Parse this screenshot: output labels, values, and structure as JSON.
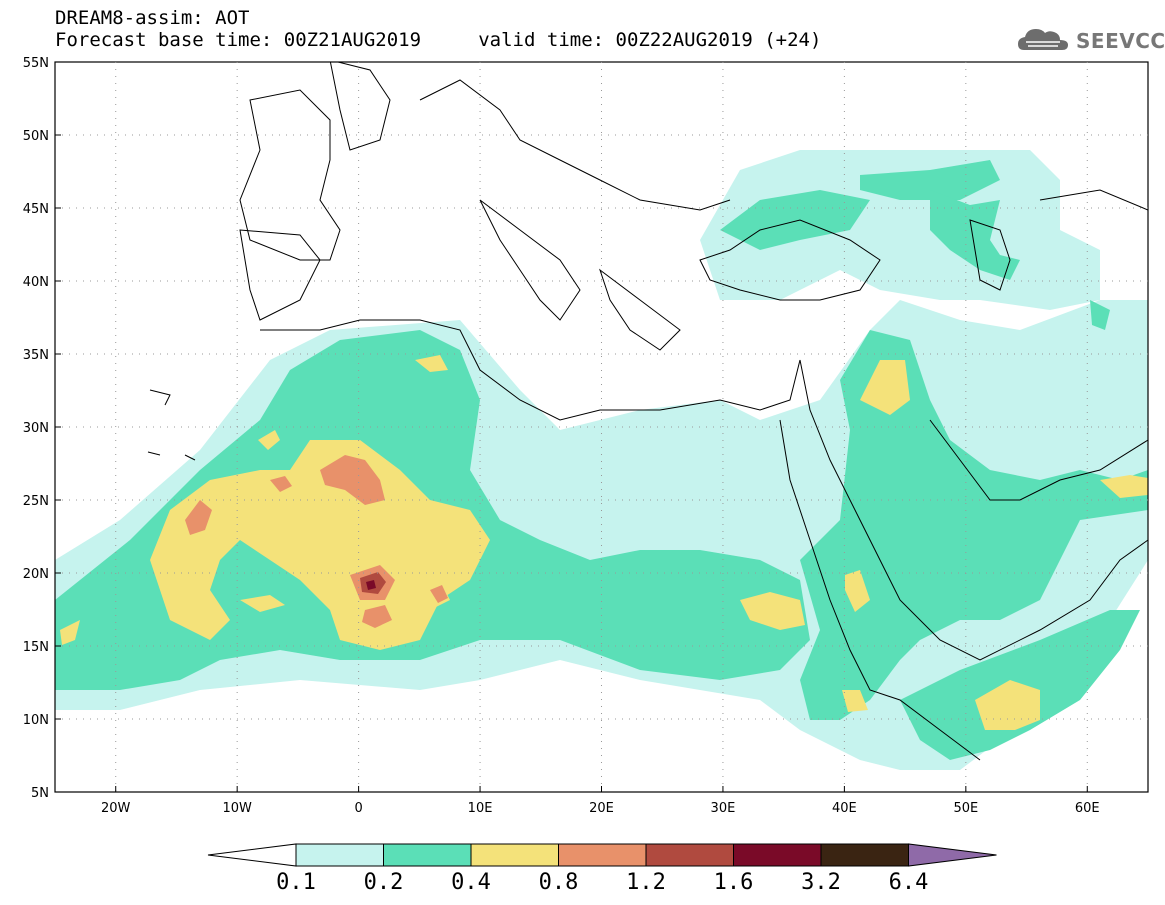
{
  "title": {
    "line1": "DREAM8-assim: AOT",
    "line2": "Forecast base time: 00Z21AUG2019     valid time: 00Z22AUG2019 (+24)"
  },
  "logo": {
    "text": "SEEVCCC",
    "icon": "cloud-icon"
  },
  "map": {
    "lon_range": [
      -25,
      65
    ],
    "lat_range": [
      5,
      55
    ],
    "lat_labels": [
      "55N",
      "50N",
      "45N",
      "40N",
      "35N",
      "30N",
      "25N",
      "20N",
      "15N",
      "10N",
      "5N"
    ],
    "lon_labels": [
      "20W",
      "10W",
      "0",
      "10E",
      "20E",
      "30E",
      "40E",
      "50E",
      "60E"
    ],
    "gridlines": "dotted"
  },
  "colorbar": {
    "labels": [
      "0.1",
      "0.2",
      "0.4",
      "0.8",
      "1.2",
      "1.6",
      "3.2",
      "6.4"
    ],
    "colors": [
      "#c6f3ee",
      "#5bdfb7",
      "#f4e27a",
      "#e8916a",
      "#b04a3f",
      "#7a0a28",
      "#3a2412",
      "#8f6aa8"
    ]
  }
}
